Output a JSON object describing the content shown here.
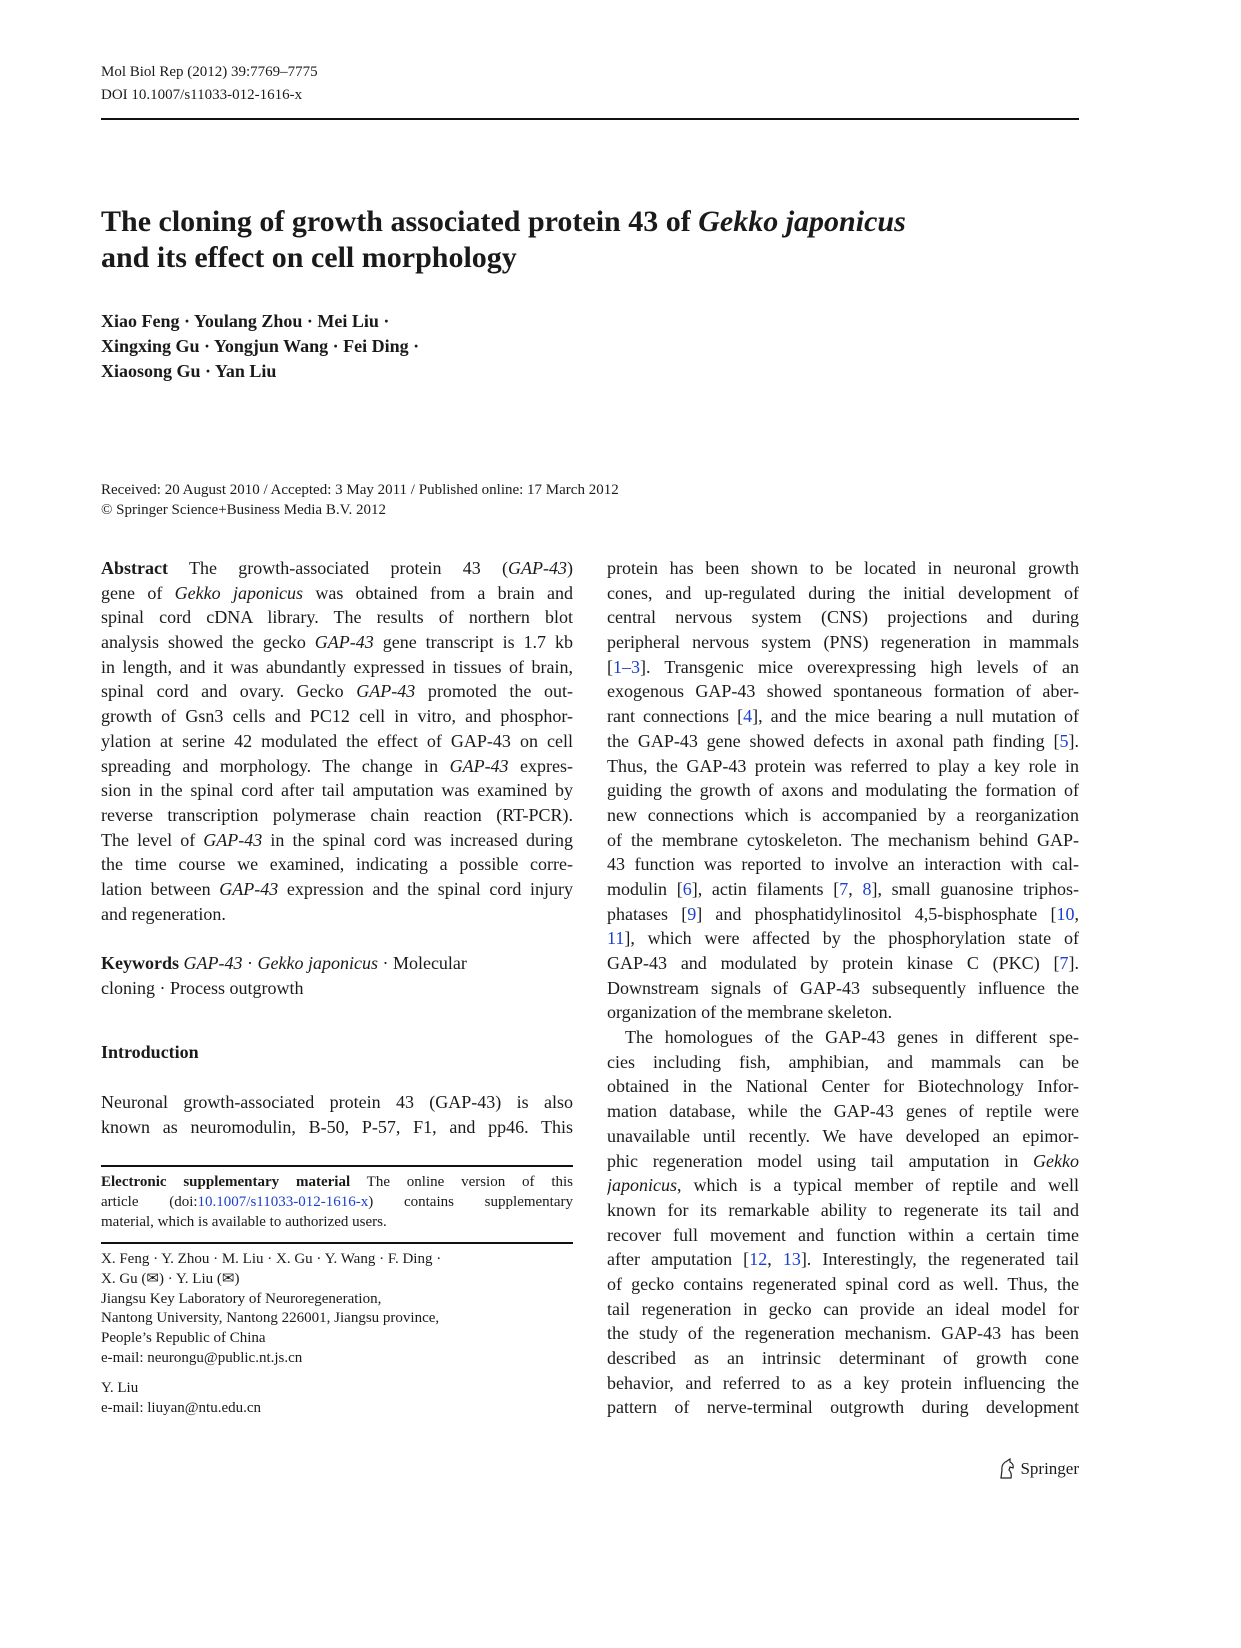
{
  "header": {
    "journal": "Mol Biol Rep (2012) 39:7769–7775",
    "doi": "DOI 10.1007/s11033-012-1616-x"
  },
  "title": {
    "line1_plain": "The cloning of growth associated protein 43 of ",
    "line1_italic": "Gekko japonicus",
    "line2": "and its effect on cell morphology"
  },
  "authors": [
    "Xiao Feng · Youlang Zhou · Mei Liu ·",
    "Xingxing Gu · Yongjun Wang · Fei Ding ·",
    "Xiaosong Gu · Yan Liu"
  ],
  "dates": "Received: 20 August 2010 / Accepted: 3 May 2011 / Published online: 17 March 2012",
  "copyright": "© Springer Science+Business Media B.V. 2012",
  "abstract": [
    [
      [
        "b",
        "Abstract"
      ],
      [
        "",
        "  The growth-associated protein 43 ("
      ],
      [
        "i",
        "GAP-43"
      ],
      [
        "",
        ")"
      ]
    ],
    [
      [
        "",
        "gene of "
      ],
      [
        "i",
        "Gekko japonicus"
      ],
      [
        "",
        " was obtained from a brain and"
      ]
    ],
    [
      [
        "",
        "spinal cord cDNA library. The results of northern blot"
      ]
    ],
    [
      [
        "",
        "analysis showed the gecko "
      ],
      [
        "i",
        "GAP-43"
      ],
      [
        "",
        " gene transcript is 1.7 kb"
      ]
    ],
    [
      [
        "",
        "in length, and it was abundantly expressed in tissues of brain,"
      ]
    ],
    [
      [
        "",
        "spinal cord and ovary. Gecko "
      ],
      [
        "i",
        "GAP-43"
      ],
      [
        "",
        " promoted the out-"
      ]
    ],
    [
      [
        "",
        "growth of Gsn3 cells and PC12 cell in vitro, and phosphor-"
      ]
    ],
    [
      [
        "",
        "ylation at serine 42 modulated the effect of GAP-43 on cell"
      ]
    ],
    [
      [
        "",
        "spreading and morphology. The change in "
      ],
      [
        "i",
        "GAP-43"
      ],
      [
        "",
        " expres-"
      ]
    ],
    [
      [
        "",
        "sion in the spinal cord after tail amputation was examined by"
      ]
    ],
    [
      [
        "",
        "reverse transcription polymerase chain reaction (RT-PCR)."
      ]
    ],
    [
      [
        "",
        "The level of "
      ],
      [
        "i",
        "GAP-43"
      ],
      [
        "",
        " in the spinal cord was increased during"
      ]
    ],
    [
      [
        "",
        "the time course we examined, indicating a possible corre-"
      ]
    ],
    [
      [
        "",
        "lation between "
      ],
      [
        "i",
        "GAP-43"
      ],
      [
        "",
        " expression and the spinal cord injury"
      ]
    ],
    [
      [
        "",
        "and regeneration."
      ]
    ]
  ],
  "keywords": [
    [
      [
        "b",
        "Keywords"
      ],
      [
        "",
        "   "
      ],
      [
        "i",
        "GAP-43"
      ],
      [
        "",
        " · "
      ],
      [
        "i",
        "Gekko japonicus"
      ],
      [
        "",
        " · Molecular"
      ]
    ],
    [
      [
        "",
        "cloning · Process outgrowth"
      ]
    ]
  ],
  "introduction_heading": "Introduction",
  "intro_left": [
    [
      [
        "",
        "Neuronal growth-associated protein 43 (GAP-43) is also"
      ]
    ],
    [
      [
        "",
        "known as neuromodulin, B-50, P-57, F1, and pp46. This"
      ]
    ]
  ],
  "footnote_esm": [
    [
      [
        "b",
        "Electronic supplementary material"
      ],
      [
        "",
        "   The online version of this"
      ]
    ],
    [
      [
        "",
        "article (doi:"
      ],
      [
        "a",
        "10.1007/s11033-012-1616-x"
      ],
      [
        "",
        ") contains supplementary"
      ]
    ],
    [
      [
        "",
        "material, which is available to authorized users."
      ]
    ]
  ],
  "affiliation": [
    "X. Feng · Y. Zhou · M. Liu · X. Gu · Y. Wang · F. Ding ·",
    "X. Gu (✉) · Y. Liu (✉)",
    "Jiangsu Key Laboratory of Neuroregeneration,",
    "Nantong University, Nantong 226001, Jiangsu province,",
    "People’s Republic of China",
    "e-mail: neurongu@public.nt.js.cn"
  ],
  "affiliation2": [
    "Y. Liu",
    "e-mail: liuyan@ntu.edu.cn"
  ],
  "right_column": [
    [
      [
        "",
        "protein has been shown to be located in neuronal growth"
      ]
    ],
    [
      [
        "",
        "cones, and up-regulated during the initial development of"
      ]
    ],
    [
      [
        "",
        "central nervous system (CNS) projections and during"
      ]
    ],
    [
      [
        "",
        "peripheral nervous system (PNS) regeneration in mammals"
      ]
    ],
    [
      [
        "",
        "["
      ],
      [
        "a",
        "1–3"
      ],
      [
        "",
        "]. Transgenic mice overexpressing high levels of an"
      ]
    ],
    [
      [
        "",
        "exogenous GAP-43 showed spontaneous formation of aber-"
      ]
    ],
    [
      [
        "",
        "rant connections ["
      ],
      [
        "a",
        "4"
      ],
      [
        "",
        "], and the mice bearing a null mutation of"
      ]
    ],
    [
      [
        "",
        "the GAP-43 gene showed defects in axonal path finding ["
      ],
      [
        "a",
        "5"
      ],
      [
        "",
        "]."
      ]
    ],
    [
      [
        "",
        "Thus, the GAP-43 protein was referred to play a key role in"
      ]
    ],
    [
      [
        "",
        "guiding the growth of axons and modulating the formation of"
      ]
    ],
    [
      [
        "",
        "new connections which is accompanied by a reorganization"
      ]
    ],
    [
      [
        "",
        "of the membrane cytoskeleton. The mechanism behind GAP-"
      ]
    ],
    [
      [
        "",
        "43 function was reported to involve an interaction with cal-"
      ]
    ],
    [
      [
        "",
        "modulin ["
      ],
      [
        "a",
        "6"
      ],
      [
        "",
        "], actin filaments ["
      ],
      [
        "a",
        "7"
      ],
      [
        "",
        ", "
      ],
      [
        "a",
        "8"
      ],
      [
        "",
        "], small guanosine triphos-"
      ]
    ],
    [
      [
        "",
        "phatases ["
      ],
      [
        "a",
        "9"
      ],
      [
        "",
        "] and phosphatidylinositol 4,5-bisphosphate ["
      ],
      [
        "a",
        "10"
      ],
      [
        "",
        ","
      ]
    ],
    [
      [
        "a",
        "11"
      ],
      [
        "",
        "], which were affected by the phosphorylation state of"
      ]
    ],
    [
      [
        "",
        "GAP-43 and modulated by protein kinase C (PKC) ["
      ],
      [
        "a",
        "7"
      ],
      [
        "",
        "]."
      ]
    ],
    [
      [
        "",
        "Downstream signals of GAP-43 subsequently influence the"
      ]
    ],
    [
      [
        "",
        "organization of the membrane skeleton."
      ]
    ],
    [
      [
        "",
        "The homologues of the GAP-43 genes in different spe-"
      ]
    ],
    [
      [
        "",
        "cies including fish, amphibian, and mammals can be"
      ]
    ],
    [
      [
        "",
        "obtained in the National Center for Biotechnology Infor-"
      ]
    ],
    [
      [
        "",
        "mation database, while the GAP-43 genes of reptile were"
      ]
    ],
    [
      [
        "",
        "unavailable until recently. We have developed an epimor-"
      ]
    ],
    [
      [
        "",
        "phic regeneration model using tail amputation in "
      ],
      [
        "i",
        "Gekko"
      ]
    ],
    [
      [
        "i",
        "japonicus"
      ],
      [
        "",
        ", which is a typical member of reptile and well"
      ]
    ],
    [
      [
        "",
        "known for its remarkable ability to regenerate its tail and"
      ]
    ],
    [
      [
        "",
        "recover full movement and function within a certain time"
      ]
    ],
    [
      [
        "",
        "after amputation ["
      ],
      [
        "a",
        "12"
      ],
      [
        "",
        ", "
      ],
      [
        "a",
        "13"
      ],
      [
        "",
        "]. Interestingly, the regenerated tail"
      ]
    ],
    [
      [
        "",
        "of gecko contains regenerated spinal cord as well. Thus, the"
      ]
    ],
    [
      [
        "",
        "tail regeneration in gecko can provide an ideal model for"
      ]
    ],
    [
      [
        "",
        "the study of the regeneration mechanism. GAP-43 has been"
      ]
    ],
    [
      [
        "",
        "described as an intrinsic determinant of growth cone"
      ]
    ],
    [
      [
        "",
        "behavior, and referred to as a key protein influencing the"
      ]
    ],
    [
      [
        "",
        "pattern of nerve-terminal outgrowth during development"
      ]
    ]
  ],
  "publisher_logo": "Springer",
  "colors": {
    "link": "#1a3fd0",
    "text": "#1a1a1a"
  }
}
